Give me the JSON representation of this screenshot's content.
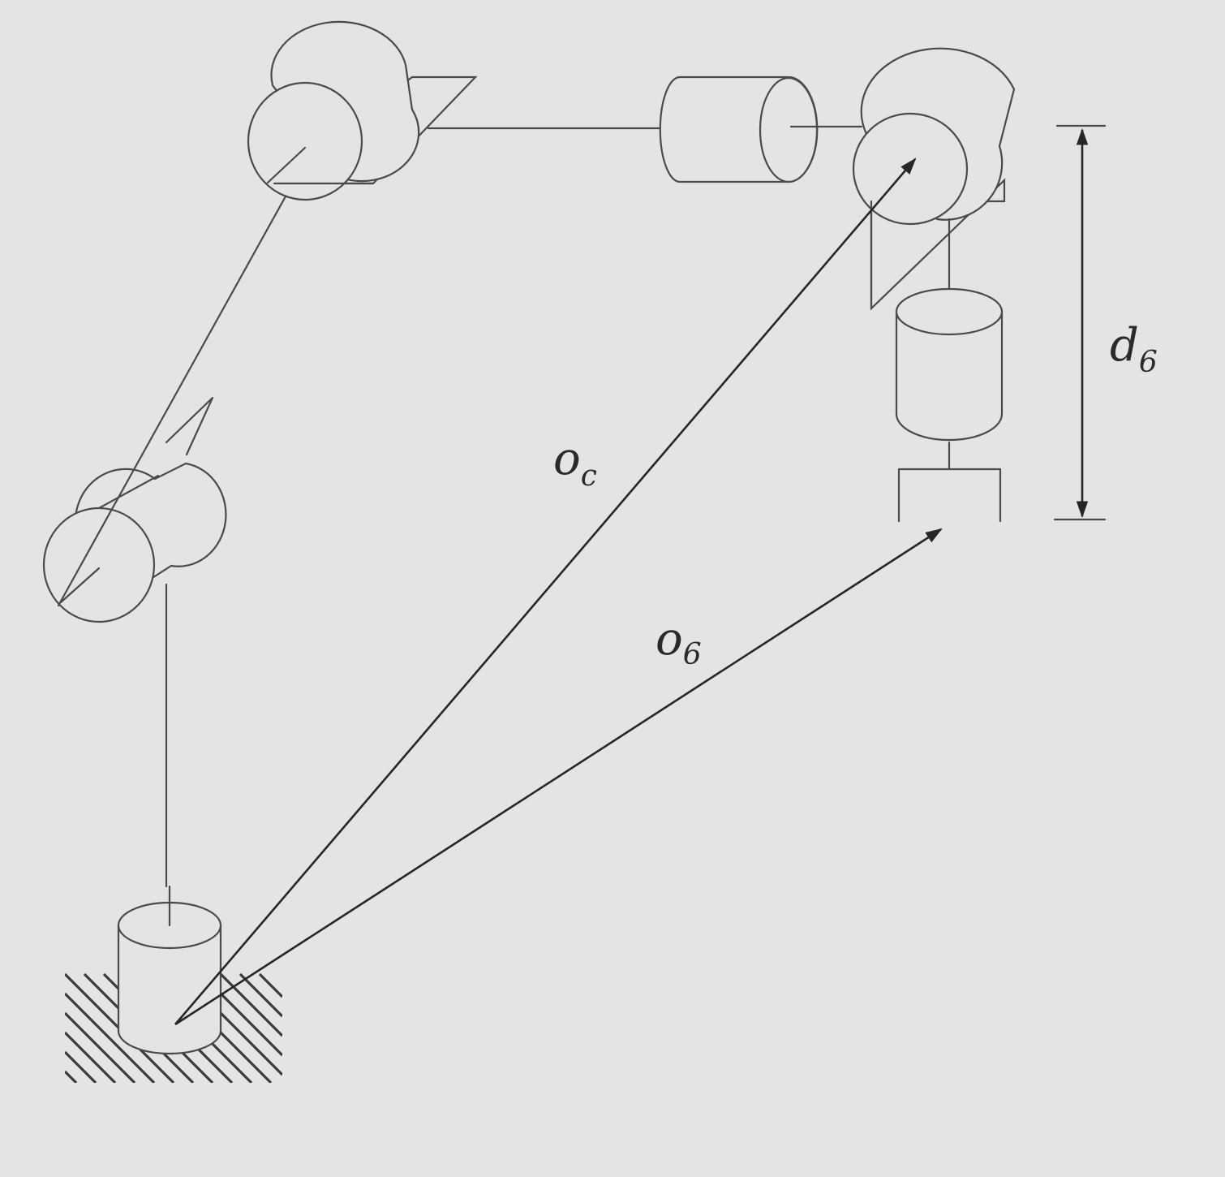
{
  "labels": {
    "oc": {
      "main": "o",
      "sub": "c"
    },
    "o6": {
      "main": "o",
      "sub": "6"
    },
    "d6": {
      "main": "d",
      "sub": "6"
    }
  },
  "colors": {
    "background": "#e4e4e2",
    "line": "#4a4a4a",
    "vector": "#262626"
  }
}
